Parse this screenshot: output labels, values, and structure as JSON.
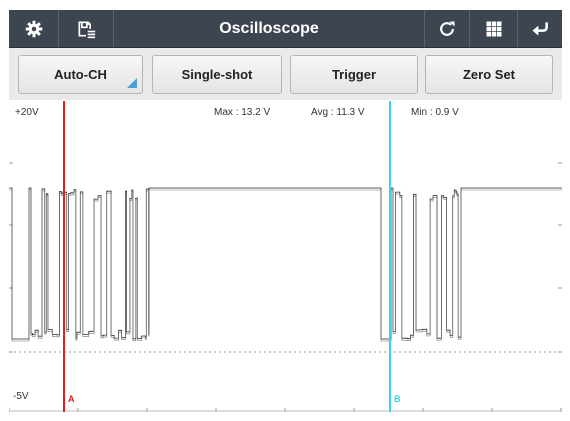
{
  "header": {
    "title": "Oscilloscope",
    "icons": [
      "gear-icon",
      "save-list-icon",
      "refresh-icon",
      "grid-icon",
      "return-icon"
    ]
  },
  "toolbar": {
    "channel_select": "Auto-CH",
    "single_shot": "Single-shot",
    "trigger": "Trigger",
    "zero_set": "Zero Set"
  },
  "display": {
    "y_top_label": "+20V",
    "y_bottom_label": "-5V",
    "max": "Max : 13.2 V",
    "avg": "Avg : 11.3 V",
    "min": "Min : 0.9 V",
    "cursor_a_label": "A",
    "cursor_b_label": "B",
    "y_range_volts": [
      -5,
      20
    ]
  },
  "colors": {
    "title_bar": "#3d4551",
    "cursor_a": "#e02020",
    "cursor_b": "#35d5e6",
    "trace": "#2b2b2b",
    "accent": "#4a9fd3"
  }
}
